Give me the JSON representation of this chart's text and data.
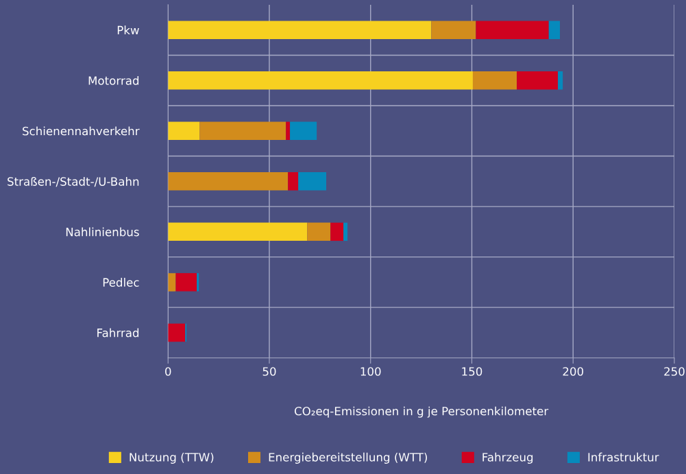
{
  "chart_data": {
    "type": "bar",
    "orientation": "horizontal",
    "stacked": true,
    "categories": [
      "Pkw",
      "Motorrad",
      "Schienennahverkehr",
      "Straßen-/Stadt-/U-Bahn",
      "Nahlinienbus",
      "Pedlec",
      "Fahrrad"
    ],
    "series": [
      {
        "name": "Nutzung (TTW)",
        "color": "#f7d020",
        "values": [
          130,
          150.5,
          15.6,
          0,
          68.7,
          0,
          0
        ]
      },
      {
        "name": "Energiebereitstellung (WTT)",
        "color": "#d28c1c",
        "values": [
          22,
          21.7,
          42.6,
          59.2,
          11.5,
          3.8,
          0
        ]
      },
      {
        "name": "Fahrzeug",
        "color": "#d0021f",
        "values": [
          36,
          20.3,
          2,
          5.1,
          6.4,
          10.4,
          8.5
        ]
      },
      {
        "name": "Infrastruktur",
        "color": "#068abc",
        "values": [
          5.5,
          2.4,
          13.2,
          13.8,
          2,
          1,
          0.6
        ]
      }
    ],
    "xlabel": "CO₂eq-Emissionen in g je Personenkilometer",
    "xlim": [
      0,
      250
    ],
    "xticks": [
      0,
      50,
      100,
      150,
      200,
      250
    ],
    "grid": true,
    "legend": "bottom"
  }
}
